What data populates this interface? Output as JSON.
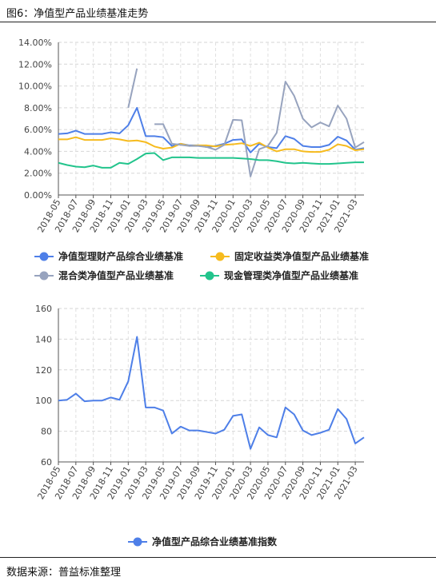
{
  "figure_title": "图6：净值型产品业绩基准走势",
  "source_note": "数据来源：普益标准整理",
  "chart_data": [
    {
      "type": "line",
      "categories": [
        "2018-05",
        "2018-06",
        "2018-07",
        "2018-08",
        "2018-09",
        "2018-10",
        "2018-11",
        "2018-12",
        "2019-01",
        "2019-02",
        "2019-03",
        "2019-04",
        "2019-05",
        "2019-06",
        "2019-07",
        "2019-08",
        "2019-09",
        "2019-10",
        "2019-11",
        "2019-12",
        "2020-01",
        "2020-02",
        "2020-03",
        "2020-04",
        "2020-05",
        "2020-06",
        "2020-07",
        "2020-08",
        "2020-09",
        "2020-10",
        "2020-11",
        "2020-12",
        "2021-01",
        "2021-02",
        "2021-03",
        "2021-04"
      ],
      "tick_labels": [
        "2018-05",
        "2018-07",
        "2018-09",
        "2018-11",
        "2019-01",
        "2019-03",
        "2019-05",
        "2019-07",
        "2019-09",
        "2019-11",
        "2020-01",
        "2020-03",
        "2020-05",
        "2020-07",
        "2020-09",
        "2020-11",
        "2021-01",
        "2021-03"
      ],
      "y_ticks": [
        "0.00%",
        "2.00%",
        "4.00%",
        "6.00%",
        "8.00%",
        "10.00%",
        "12.00%",
        "14.00%"
      ],
      "ylim": [
        0,
        14
      ],
      "y_unit": "%",
      "grid": true,
      "legend_position": "bottom",
      "series": [
        {
          "name": "净值型理财产品综合业绩基准",
          "color": "#4e7fe8",
          "values": [
            5.6,
            5.65,
            5.9,
            5.6,
            5.6,
            5.6,
            5.75,
            5.65,
            6.4,
            8.0,
            5.4,
            5.4,
            5.3,
            4.5,
            4.7,
            4.55,
            4.55,
            4.4,
            4.5,
            4.7,
            5.05,
            5.1,
            3.9,
            4.7,
            4.4,
            4.3,
            5.4,
            5.15,
            4.5,
            4.4,
            4.4,
            4.6,
            5.35,
            5.0,
            4.15,
            4.3
          ]
        },
        {
          "name": "固定收益类净值型产品业绩基准",
          "color": "#f6bb1e",
          "values": [
            5.1,
            5.1,
            5.3,
            5.05,
            5.05,
            5.05,
            5.2,
            5.1,
            4.95,
            5.0,
            4.85,
            4.45,
            4.25,
            4.35,
            4.7,
            4.5,
            4.55,
            4.55,
            4.45,
            4.6,
            4.65,
            4.75,
            4.5,
            4.8,
            4.35,
            4.0,
            4.2,
            4.2,
            4.0,
            3.95,
            3.95,
            4.15,
            4.65,
            4.5,
            4.1,
            4.2
          ]
        },
        {
          "name": "混合类净值型产品业绩基准",
          "color": "#97a3be",
          "values": [
            null,
            null,
            null,
            null,
            null,
            null,
            null,
            null,
            8.0,
            11.6,
            null,
            6.5,
            6.5,
            4.7,
            4.6,
            4.5,
            4.5,
            4.4,
            4.15,
            4.6,
            6.9,
            6.85,
            1.7,
            4.2,
            4.5,
            5.7,
            10.4,
            9.1,
            7.0,
            6.2,
            6.65,
            6.3,
            8.2,
            7.0,
            4.35,
            4.85
          ]
        },
        {
          "name": "现金管理类净值型产品业绩基准",
          "color": "#22c48c",
          "values": [
            2.95,
            2.75,
            2.6,
            2.55,
            2.7,
            2.5,
            2.5,
            2.95,
            2.85,
            3.3,
            3.8,
            3.85,
            3.2,
            3.45,
            3.45,
            3.45,
            3.4,
            3.4,
            3.4,
            3.4,
            3.4,
            3.35,
            3.3,
            3.2,
            3.2,
            3.1,
            2.95,
            2.9,
            2.95,
            2.9,
            2.85,
            2.85,
            2.9,
            2.95,
            3.0,
            3.0
          ]
        }
      ]
    },
    {
      "type": "line",
      "categories": [
        "2018-05",
        "2018-06",
        "2018-07",
        "2018-08",
        "2018-09",
        "2018-10",
        "2018-11",
        "2018-12",
        "2019-01",
        "2019-02",
        "2019-03",
        "2019-04",
        "2019-05",
        "2019-06",
        "2019-07",
        "2019-08",
        "2019-09",
        "2019-10",
        "2019-11",
        "2019-12",
        "2020-01",
        "2020-02",
        "2020-03",
        "2020-04",
        "2020-05",
        "2020-06",
        "2020-07",
        "2020-08",
        "2020-09",
        "2020-10",
        "2020-11",
        "2020-12",
        "2021-01",
        "2021-02",
        "2021-03",
        "2021-04"
      ],
      "tick_labels": [
        "2018-05",
        "2018-07",
        "2018-09",
        "2018-11",
        "2019-01",
        "2019-03",
        "2019-05",
        "2019-07",
        "2019-09",
        "2019-11",
        "2020-01",
        "2020-03",
        "2020-05",
        "2020-07",
        "2020-09",
        "2020-11",
        "2021-01",
        "2021-03"
      ],
      "y_ticks": [
        "60",
        "80",
        "100",
        "120",
        "140",
        "160"
      ],
      "ylim": [
        60,
        160
      ],
      "grid": true,
      "legend_position": "bottom",
      "series": [
        {
          "name": "净值型产品综合业绩基准指数",
          "color": "#4e7fe8",
          "values": [
            100,
            100.5,
            104.5,
            99.5,
            100,
            100,
            102,
            100.5,
            112.5,
            141.5,
            95.5,
            95.5,
            93.5,
            78.5,
            83,
            80.5,
            80.5,
            79.5,
            78.5,
            81,
            90,
            91,
            68.5,
            82.5,
            77.5,
            76,
            95.5,
            91,
            80.5,
            77.5,
            79,
            81,
            94.5,
            88,
            72,
            76
          ]
        }
      ]
    }
  ]
}
